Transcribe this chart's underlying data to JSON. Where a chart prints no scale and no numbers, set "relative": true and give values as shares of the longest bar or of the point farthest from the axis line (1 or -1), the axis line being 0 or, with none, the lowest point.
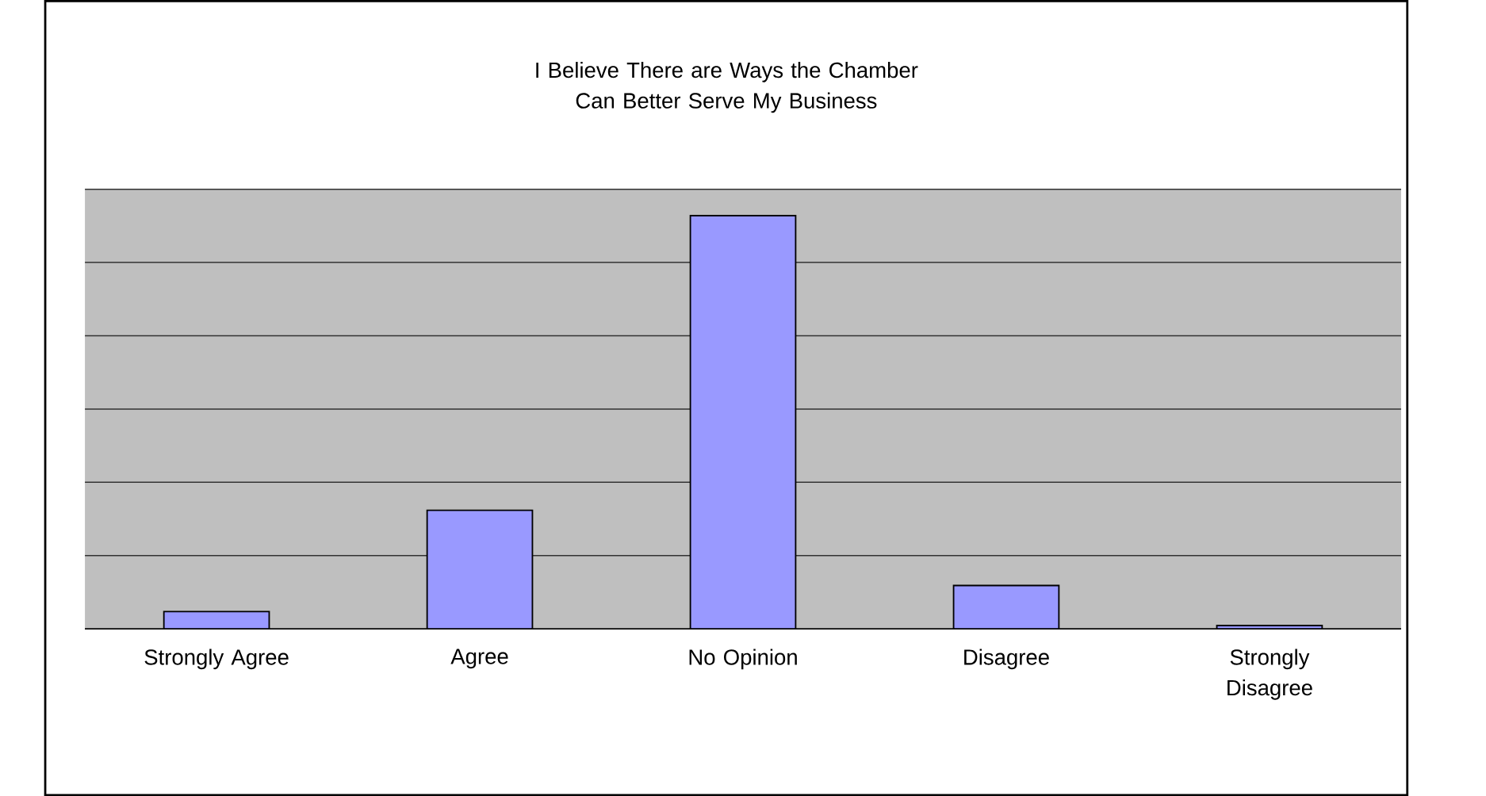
{
  "chart_data": {
    "type": "bar",
    "title": "I Believe There are Ways the Chamber Can Better Serve My Business",
    "categories": [
      "Strongly Agree",
      "Agree",
      "No Opinion",
      "Disagree",
      "Strongly Disagree"
    ],
    "values": [
      0.042,
      0.287,
      1,
      0.105,
      0.008
    ],
    "color": "#9999ff",
    "relative": true,
    "grid": "y"
  }
}
